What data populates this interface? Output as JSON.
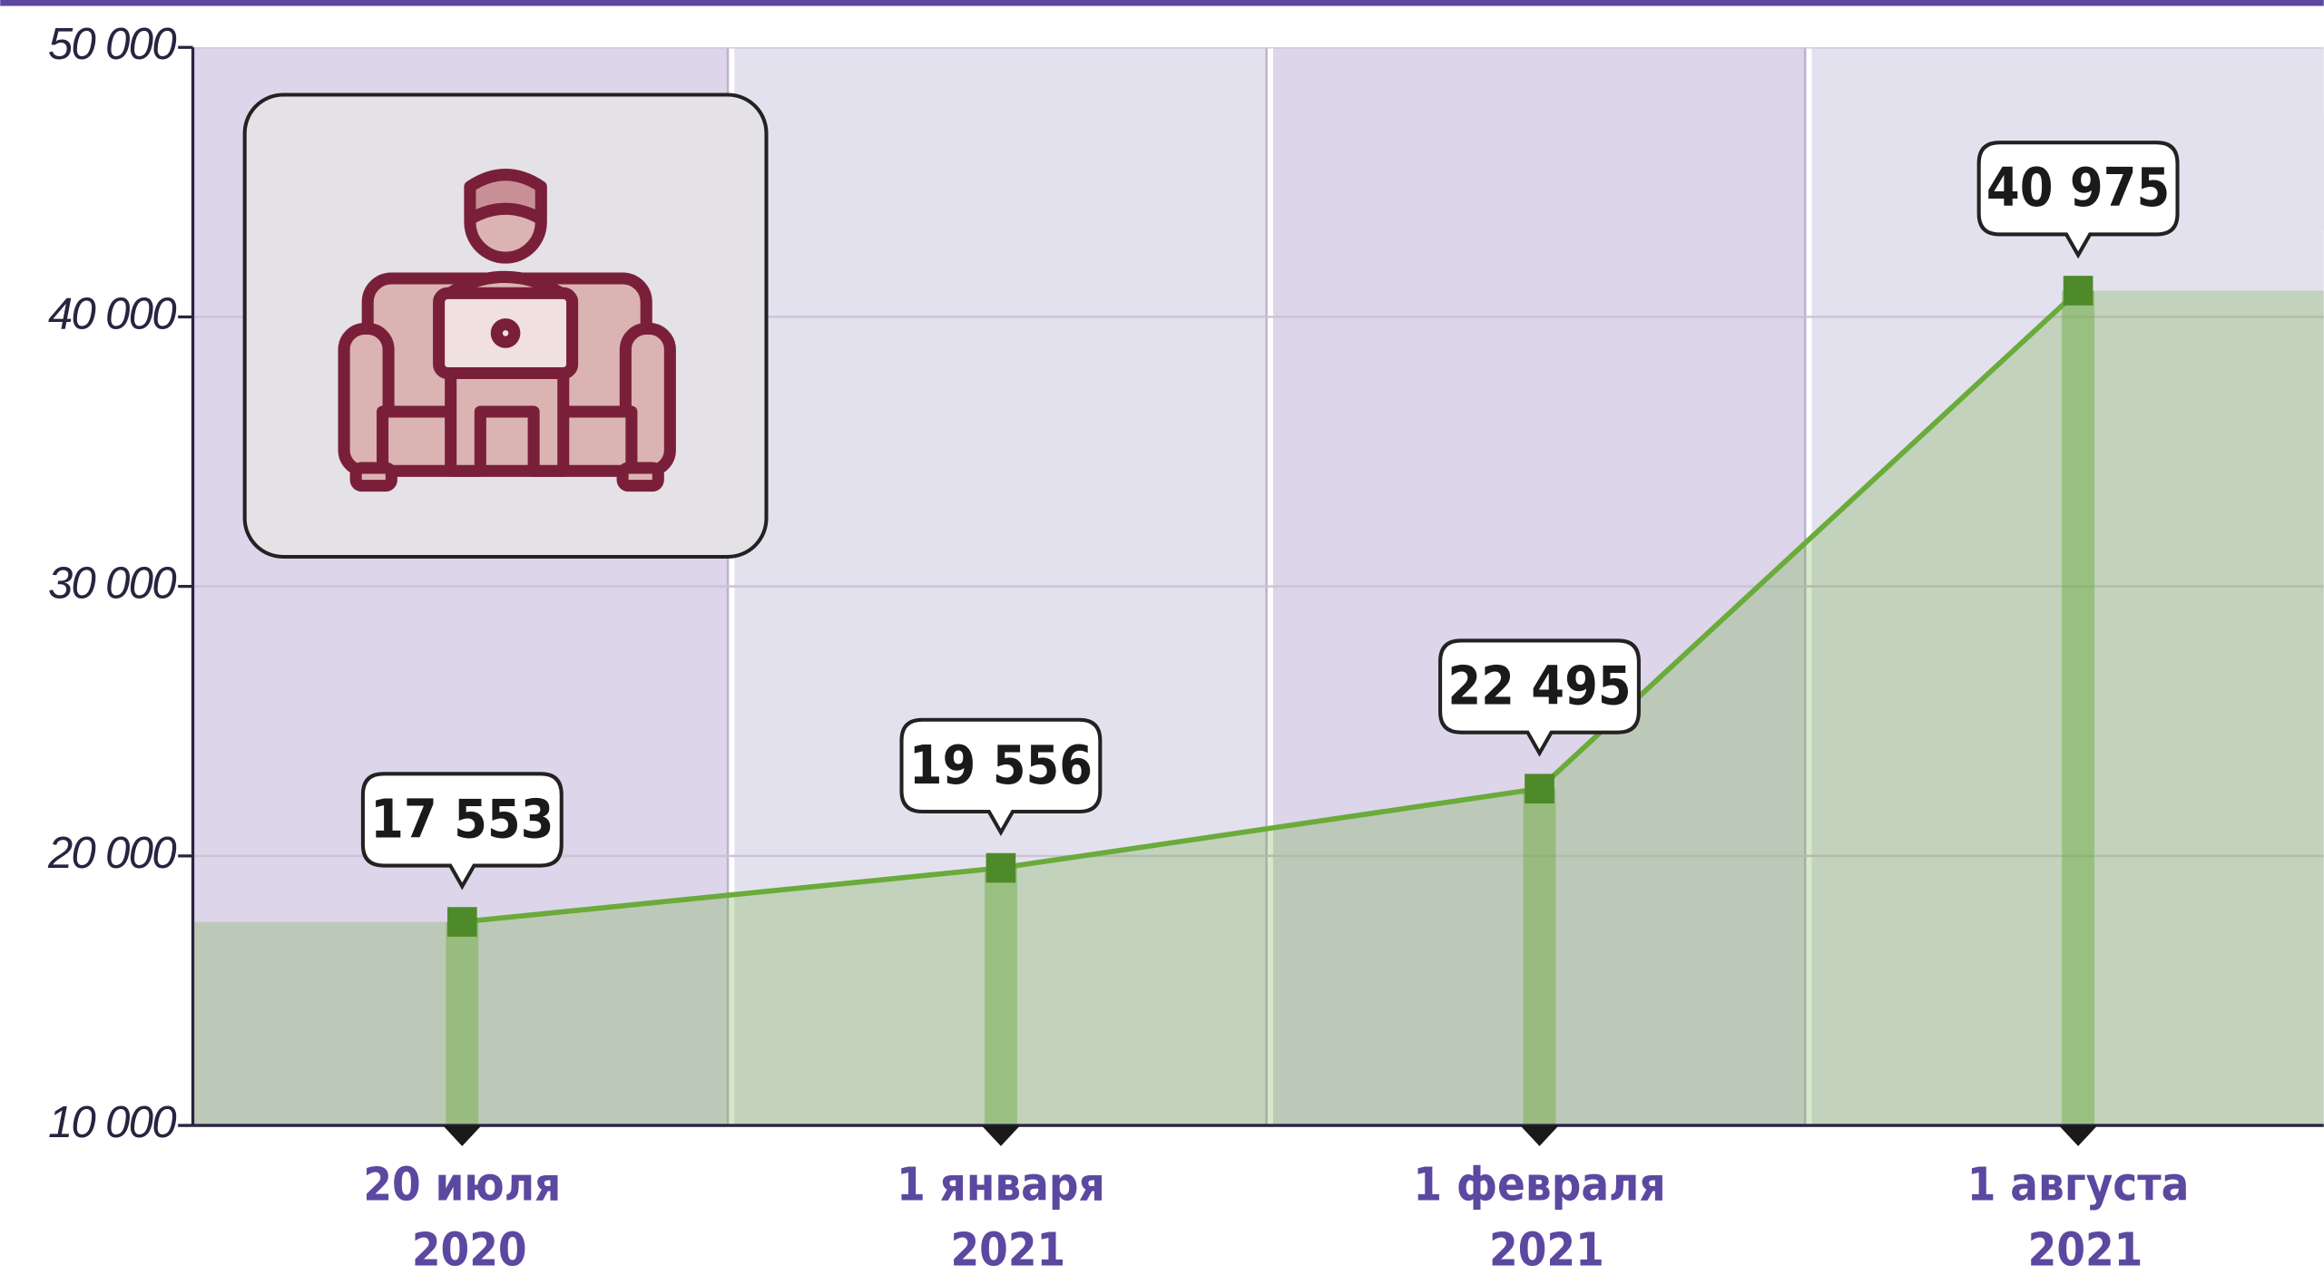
{
  "chart_data": {
    "type": "line",
    "categories": [
      "20 июля 2020",
      "1 января 2021",
      "1 февраля 2021",
      "1 августа 2021"
    ],
    "values": [
      17553,
      19556,
      22495,
      40975
    ],
    "value_labels": [
      "17 553",
      "19 556",
      "22 495",
      "40 975"
    ],
    "color": "#6aab3a",
    "ylim": [
      10000,
      50000
    ],
    "yticks": [
      {
        "value": 10000,
        "label": "10 000"
      },
      {
        "value": 20000,
        "label": "20 000"
      },
      {
        "value": 30000,
        "label": "30 000"
      },
      {
        "value": 40000,
        "label": "40 000"
      },
      {
        "value": 50000,
        "label": "50 000"
      }
    ],
    "grid": true
  }
}
